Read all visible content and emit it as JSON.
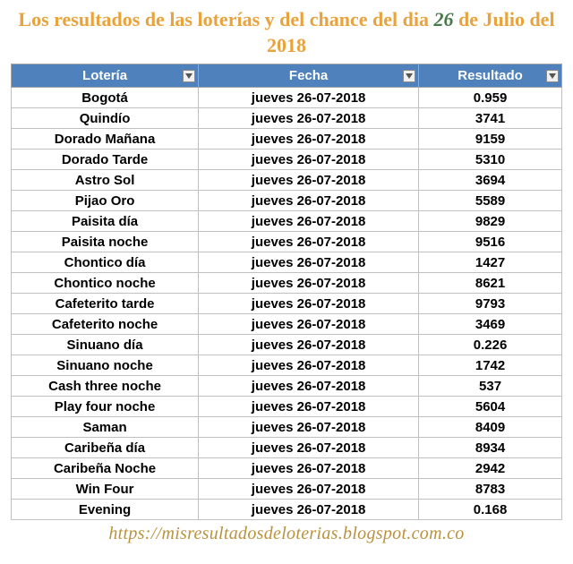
{
  "title": {
    "prefix": "Los resultados de las loterías y del chance del dia ",
    "day": "26",
    "suffix": " de Julio del 2018",
    "color_main": "#e8a33d",
    "color_day": "#4a7a4a",
    "fontsize": 22
  },
  "table": {
    "header_bg": "#4f81bd",
    "header_fg": "#ffffff",
    "border_color": "#c0c0c0",
    "cell_bg": "#ffffff",
    "cell_fg": "#000000",
    "font_weight": "bold",
    "columns": [
      {
        "label": "Lotería",
        "width": "34%"
      },
      {
        "label": "Fecha",
        "width": "40%"
      },
      {
        "label": "Resultado",
        "width": "26%"
      }
    ],
    "rows": [
      {
        "loteria": "Bogotá",
        "fecha": "jueves 26-07-2018",
        "resultado": "0.959"
      },
      {
        "loteria": "Quindío",
        "fecha": "jueves 26-07-2018",
        "resultado": "3741"
      },
      {
        "loteria": "Dorado Mañana",
        "fecha": "jueves 26-07-2018",
        "resultado": "9159"
      },
      {
        "loteria": "Dorado Tarde",
        "fecha": "jueves 26-07-2018",
        "resultado": "5310"
      },
      {
        "loteria": "Astro Sol",
        "fecha": "jueves 26-07-2018",
        "resultado": "3694"
      },
      {
        "loteria": "Pijao Oro",
        "fecha": "jueves 26-07-2018",
        "resultado": "5589"
      },
      {
        "loteria": "Paisita día",
        "fecha": "jueves 26-07-2018",
        "resultado": "9829"
      },
      {
        "loteria": "Paisita noche",
        "fecha": "jueves 26-07-2018",
        "resultado": "9516"
      },
      {
        "loteria": "Chontico día",
        "fecha": "jueves 26-07-2018",
        "resultado": "1427"
      },
      {
        "loteria": "Chontico noche",
        "fecha": "jueves 26-07-2018",
        "resultado": "8621"
      },
      {
        "loteria": "Cafeterito tarde",
        "fecha": "jueves 26-07-2018",
        "resultado": "9793"
      },
      {
        "loteria": "Cafeterito noche",
        "fecha": "jueves 26-07-2018",
        "resultado": "3469"
      },
      {
        "loteria": "Sinuano día",
        "fecha": "jueves 26-07-2018",
        "resultado": "0.226"
      },
      {
        "loteria": "Sinuano noche",
        "fecha": "jueves 26-07-2018",
        "resultado": "1742"
      },
      {
        "loteria": "Cash three noche",
        "fecha": "jueves 26-07-2018",
        "resultado": "537"
      },
      {
        "loteria": "Play four noche",
        "fecha": "jueves 26-07-2018",
        "resultado": "5604"
      },
      {
        "loteria": "Saman",
        "fecha": "jueves 26-07-2018",
        "resultado": "8409"
      },
      {
        "loteria": "Caribeña día",
        "fecha": "jueves 26-07-2018",
        "resultado": "8934"
      },
      {
        "loteria": "Caribeña Noche",
        "fecha": "jueves 26-07-2018",
        "resultado": "2942"
      },
      {
        "loteria": "Win Four",
        "fecha": "jueves 26-07-2018",
        "resultado": "8783"
      },
      {
        "loteria": "Evening",
        "fecha": "jueves 26-07-2018",
        "resultado": "0.168"
      }
    ]
  },
  "footer": {
    "url_text": "https://misresultadosdeloterias.blogspot.com.co",
    "color": "#b8923e",
    "fontsize": 20
  }
}
